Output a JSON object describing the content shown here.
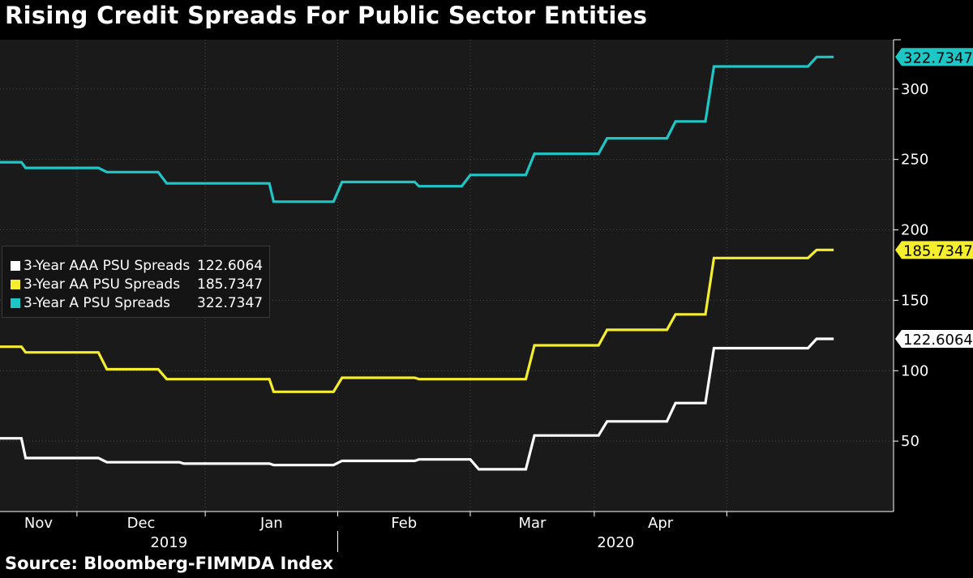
{
  "title": "Rising Credit Spreads For Public Sector Entities",
  "source": "Source: Bloomberg-FIMMDA Index",
  "colors": {
    "background": "#000000",
    "plot_background": "#1a1a1a",
    "grid": "#4a4a4a",
    "axis_text": "#ffffff"
  },
  "chart_data": {
    "type": "line",
    "title": "Rising Credit Spreads For Public Sector Entities",
    "x_range": [
      "2019-10-14",
      "2020-05-10"
    ],
    "ylim": [
      0,
      335
    ],
    "grid": true,
    "y_axis_position": "right",
    "y_ticks": [
      50,
      100,
      150,
      200,
      250,
      300
    ],
    "x_month_ticks": [
      {
        "label": "Nov",
        "date": "2019-11-01"
      },
      {
        "label": "Dec",
        "date": "2019-12-01"
      },
      {
        "label": "Jan",
        "date": "2020-01-01"
      },
      {
        "label": "Feb",
        "date": "2020-02-01"
      },
      {
        "label": "Mar",
        "date": "2020-03-01"
      },
      {
        "label": "Apr",
        "date": "2020-04-01"
      }
    ],
    "x_year_labels": [
      {
        "label": "2019",
        "from": "2019-10-14",
        "to": "2020-01-01"
      },
      {
        "label": "2020",
        "from": "2020-01-01",
        "to": "2020-05-10"
      }
    ],
    "legend_position": "left",
    "series": [
      {
        "name": "3-Year AAA PSU Spreads",
        "last_value": "122.6064",
        "color": "#ffffff",
        "points": [
          [
            "2019-10-14",
            52
          ],
          [
            "2019-10-19",
            52
          ],
          [
            "2019-10-20",
            38
          ],
          [
            "2019-11-06",
            38
          ],
          [
            "2019-11-08",
            35
          ],
          [
            "2019-11-25",
            35
          ],
          [
            "2019-11-26",
            34
          ],
          [
            "2019-12-16",
            34
          ],
          [
            "2019-12-17",
            33
          ],
          [
            "2019-12-31",
            33
          ],
          [
            "2020-01-02",
            36
          ],
          [
            "2020-01-19",
            36
          ],
          [
            "2020-01-20",
            37
          ],
          [
            "2020-02-01",
            37
          ],
          [
            "2020-02-03",
            30
          ],
          [
            "2020-02-14",
            30
          ],
          [
            "2020-02-16",
            54
          ],
          [
            "2020-03-02",
            54
          ],
          [
            "2020-03-04",
            64
          ],
          [
            "2020-03-18",
            64
          ],
          [
            "2020-03-20",
            77
          ],
          [
            "2020-03-27",
            77
          ],
          [
            "2020-03-29",
            116
          ],
          [
            "2020-04-20",
            116
          ],
          [
            "2020-04-22",
            122.6064
          ],
          [
            "2020-04-26",
            122.6064
          ]
        ]
      },
      {
        "name": "3-Year AA PSU Spreads",
        "last_value": "185.7347",
        "color": "#f4ee2e",
        "points": [
          [
            "2019-10-14",
            117
          ],
          [
            "2019-10-19",
            117
          ],
          [
            "2019-10-20",
            113
          ],
          [
            "2019-11-06",
            113
          ],
          [
            "2019-11-08",
            101
          ],
          [
            "2019-11-20",
            101
          ],
          [
            "2019-11-22",
            94
          ],
          [
            "2019-12-16",
            94
          ],
          [
            "2019-12-17",
            85
          ],
          [
            "2019-12-31",
            85
          ],
          [
            "2020-01-02",
            95
          ],
          [
            "2020-01-19",
            95
          ],
          [
            "2020-01-20",
            94
          ],
          [
            "2020-02-14",
            94
          ],
          [
            "2020-02-16",
            118
          ],
          [
            "2020-03-02",
            118
          ],
          [
            "2020-03-04",
            129
          ],
          [
            "2020-03-18",
            129
          ],
          [
            "2020-03-20",
            140
          ],
          [
            "2020-03-27",
            140
          ],
          [
            "2020-03-29",
            180
          ],
          [
            "2020-04-20",
            180
          ],
          [
            "2020-04-22",
            185.7347
          ],
          [
            "2020-04-26",
            185.7347
          ]
        ]
      },
      {
        "name": "3-Year A PSU Spreads",
        "last_value": "322.7347",
        "color": "#1fc6c6",
        "points": [
          [
            "2019-10-14",
            248
          ],
          [
            "2019-10-19",
            248
          ],
          [
            "2019-10-20",
            244
          ],
          [
            "2019-11-06",
            244
          ],
          [
            "2019-11-08",
            241
          ],
          [
            "2019-11-20",
            241
          ],
          [
            "2019-11-22",
            233
          ],
          [
            "2019-12-16",
            233
          ],
          [
            "2019-12-17",
            220
          ],
          [
            "2019-12-31",
            220
          ],
          [
            "2020-01-02",
            234
          ],
          [
            "2020-01-19",
            234
          ],
          [
            "2020-01-20",
            231
          ],
          [
            "2020-01-30",
            231
          ],
          [
            "2020-02-01",
            239
          ],
          [
            "2020-02-14",
            239
          ],
          [
            "2020-02-16",
            254
          ],
          [
            "2020-03-02",
            254
          ],
          [
            "2020-03-04",
            265
          ],
          [
            "2020-03-18",
            265
          ],
          [
            "2020-03-20",
            277
          ],
          [
            "2020-03-27",
            277
          ],
          [
            "2020-03-29",
            316
          ],
          [
            "2020-04-20",
            316
          ],
          [
            "2020-04-22",
            322.7347
          ],
          [
            "2020-04-26",
            322.7347
          ]
        ]
      }
    ]
  }
}
